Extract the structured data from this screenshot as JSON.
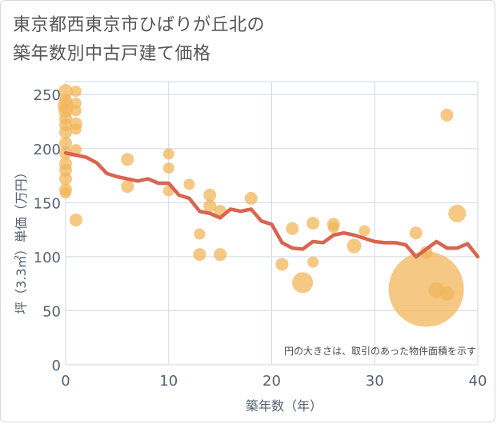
{
  "title": {
    "line1": "東京都西東京市ひばりが丘北の",
    "line2": "築年数別中古戸建て価格"
  },
  "note": "円の大きさは、取引のあった物件面積を示す",
  "colors": {
    "bubble": "#f2b65a",
    "line": "#d9644f",
    "grid": "#cfd9e3",
    "axis": "#566270"
  },
  "chart_data": {
    "type": "scatter",
    "xlabel": "築年数（年）",
    "ylabel": "坪（3.3㎡）単価（万円）",
    "xlim": [
      0,
      40
    ],
    "ylim": [
      0,
      262
    ],
    "xticks": [
      0,
      10,
      20,
      30,
      40
    ],
    "yticks": [
      0,
      50,
      100,
      150,
      200,
      250
    ],
    "grid": true,
    "bubbles": [
      {
        "x": 0,
        "y": 253,
        "r": 9
      },
      {
        "x": 0,
        "y": 245,
        "r": 8
      },
      {
        "x": 0,
        "y": 240,
        "r": 10
      },
      {
        "x": 0,
        "y": 235,
        "r": 9
      },
      {
        "x": 0,
        "y": 228,
        "r": 8
      },
      {
        "x": 0,
        "y": 222,
        "r": 8
      },
      {
        "x": 0,
        "y": 215,
        "r": 8
      },
      {
        "x": 0,
        "y": 205,
        "r": 8
      },
      {
        "x": 0,
        "y": 196,
        "r": 8
      },
      {
        "x": 0,
        "y": 186,
        "r": 8
      },
      {
        "x": 0,
        "y": 180,
        "r": 8
      },
      {
        "x": 0,
        "y": 172,
        "r": 8
      },
      {
        "x": 0,
        "y": 162,
        "r": 8
      },
      {
        "x": 0,
        "y": 159,
        "r": 7
      },
      {
        "x": 1,
        "y": 253,
        "r": 7
      },
      {
        "x": 1,
        "y": 242,
        "r": 7
      },
      {
        "x": 1,
        "y": 235,
        "r": 7
      },
      {
        "x": 1,
        "y": 223,
        "r": 8
      },
      {
        "x": 1,
        "y": 218,
        "r": 7
      },
      {
        "x": 1,
        "y": 199,
        "r": 7
      },
      {
        "x": 1,
        "y": 134,
        "r": 8
      },
      {
        "x": 6,
        "y": 190,
        "r": 8
      },
      {
        "x": 6,
        "y": 165,
        "r": 8
      },
      {
        "x": 10,
        "y": 195,
        "r": 7
      },
      {
        "x": 10,
        "y": 182,
        "r": 7
      },
      {
        "x": 10,
        "y": 161,
        "r": 7
      },
      {
        "x": 12,
        "y": 167,
        "r": 7
      },
      {
        "x": 13,
        "y": 121,
        "r": 7
      },
      {
        "x": 13,
        "y": 102,
        "r": 8
      },
      {
        "x": 14,
        "y": 157,
        "r": 8
      },
      {
        "x": 14,
        "y": 147,
        "r": 8
      },
      {
        "x": 15,
        "y": 142,
        "r": 8
      },
      {
        "x": 15,
        "y": 102,
        "r": 8
      },
      {
        "x": 18,
        "y": 154,
        "r": 8
      },
      {
        "x": 21,
        "y": 93,
        "r": 8
      },
      {
        "x": 22,
        "y": 126,
        "r": 8
      },
      {
        "x": 23,
        "y": 76,
        "r": 13
      },
      {
        "x": 24,
        "y": 131,
        "r": 8
      },
      {
        "x": 24,
        "y": 95,
        "r": 7
      },
      {
        "x": 26,
        "y": 130,
        "r": 8
      },
      {
        "x": 26,
        "y": 127,
        "r": 7
      },
      {
        "x": 28,
        "y": 110,
        "r": 9
      },
      {
        "x": 29,
        "y": 124,
        "r": 7
      },
      {
        "x": 34,
        "y": 122,
        "r": 8
      },
      {
        "x": 35,
        "y": 70,
        "r": 47
      },
      {
        "x": 35,
        "y": 104,
        "r": 8
      },
      {
        "x": 36,
        "y": 69,
        "r": 10
      },
      {
        "x": 37,
        "y": 66,
        "r": 9
      },
      {
        "x": 37,
        "y": 231,
        "r": 8
      },
      {
        "x": 38,
        "y": 140,
        "r": 11
      }
    ],
    "trend": {
      "x": [
        0,
        1,
        2,
        3,
        4,
        5,
        6,
        7,
        8,
        9,
        10,
        11,
        12,
        13,
        14,
        15,
        16,
        17,
        18,
        19,
        20,
        21,
        22,
        23,
        24,
        25,
        26,
        27,
        28,
        29,
        30,
        31,
        32,
        33,
        34,
        35,
        36,
        37,
        38,
        39,
        40
      ],
      "y": [
        196,
        194,
        192,
        187,
        177,
        174,
        172,
        170,
        172,
        168,
        168,
        157,
        154,
        142,
        140,
        136,
        144,
        142,
        144,
        133,
        130,
        113,
        108,
        107,
        114,
        113,
        120,
        122,
        120,
        117,
        114,
        113,
        113,
        111,
        100,
        107,
        114,
        108,
        108,
        112,
        100
      ]
    }
  }
}
